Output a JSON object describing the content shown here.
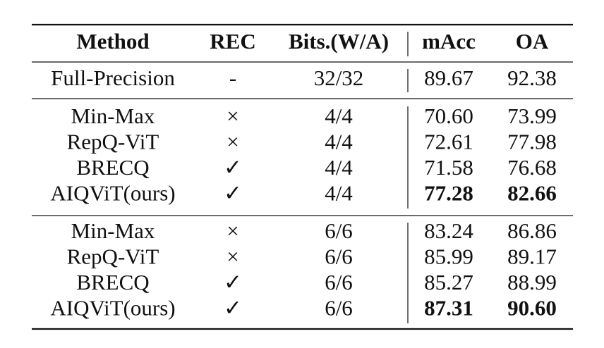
{
  "table": {
    "header": [
      "Method",
      "REC",
      "Bits.(W/A)",
      "mAcc",
      "OA"
    ],
    "groups": [
      [
        [
          "Full-Precision",
          "-",
          "32/32",
          "89.67",
          "92.38"
        ]
      ],
      [
        [
          "Min-Max",
          "×",
          "4/4",
          "70.60",
          "73.99"
        ],
        [
          "RepQ-ViT",
          "×",
          "4/4",
          "72.61",
          "77.98"
        ],
        [
          "BRECQ",
          "✓",
          "4/4",
          "71.58",
          "76.68"
        ],
        [
          "AIQViT(ours)",
          "✓",
          "4/4",
          "77.28",
          "82.66"
        ]
      ],
      [
        [
          "Min-Max",
          "×",
          "6/6",
          "83.24",
          "86.86"
        ],
        [
          "RepQ-ViT",
          "×",
          "6/6",
          "85.99",
          "89.17"
        ],
        [
          "BRECQ",
          "✓",
          "6/6",
          "85.27",
          "88.99"
        ],
        [
          "AIQViT(ours)",
          "✓",
          "6/6",
          "87.31",
          "90.60"
        ]
      ]
    ]
  }
}
